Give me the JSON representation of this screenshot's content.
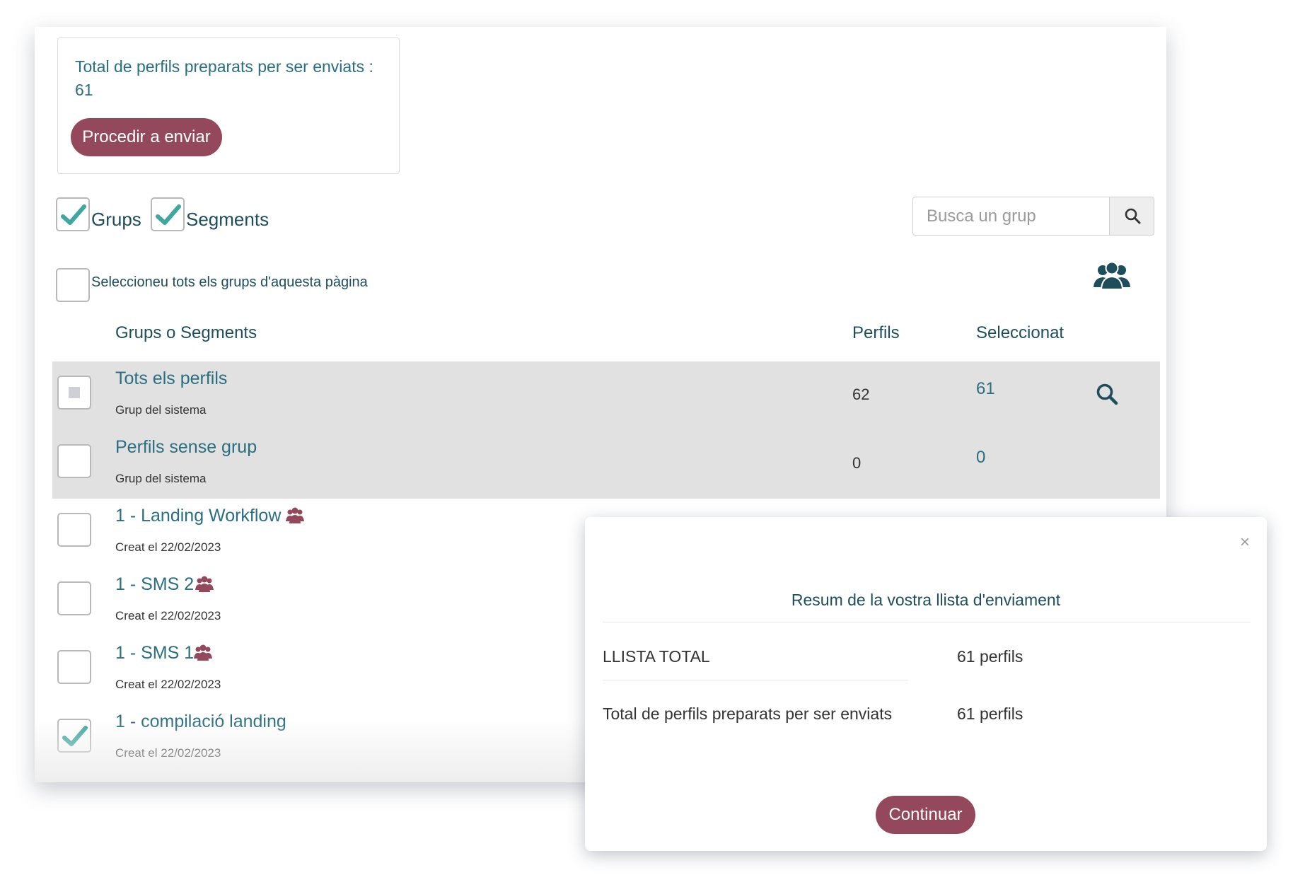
{
  "summary": {
    "text": "Total de perfils preparats per ser enviats : 61",
    "send_button": "Procedir a enviar"
  },
  "filters": {
    "groups_label": "Grups",
    "groups_checked": true,
    "segments_label": "Segments",
    "segments_checked": true
  },
  "search": {
    "placeholder": "Busca un grup"
  },
  "select_all_label": "Seleccioneu tots els grups d'aquesta pàgina",
  "table": {
    "columns": [
      "Grups o Segments",
      "Perfils",
      "Seleccionat"
    ],
    "rows": [
      {
        "title": "Tots els perfils",
        "subtitle": "Grup del sistema",
        "perfils": "62",
        "selected": "61",
        "checkbox": "indeterminate",
        "system": true
      },
      {
        "title": "Perfils sense grup",
        "subtitle": "Grup del sistema",
        "perfils": "0",
        "selected": "0",
        "checkbox": "unchecked",
        "system": true
      },
      {
        "title": "1 - Landing  Workflow",
        "subtitle": "Creat el 22/02/2023",
        "checkbox": "unchecked",
        "icon": "users-icon"
      },
      {
        "title": "1 - SMS 2",
        "subtitle": "Creat el 22/02/2023",
        "checkbox": "unchecked",
        "icon": "users-icon"
      },
      {
        "title": "1 - SMS 1",
        "subtitle": "Creat el 22/02/2023",
        "checkbox": "unchecked",
        "icon": "users-icon"
      },
      {
        "title": "1 - compilació  landing",
        "subtitle": "Creat el 22/02/2023",
        "checkbox": "checked"
      }
    ]
  },
  "modal": {
    "close": "×",
    "title": "Resum de la vostra llista d'enviament",
    "rows": [
      {
        "label": "LLISTA TOTAL",
        "value": "61 perfils"
      },
      {
        "label": "Total de perfils preparats per ser enviats",
        "value": "61 perfils"
      }
    ],
    "continue_button": "Continuar"
  },
  "colors": {
    "primary_button": "#93495b",
    "link_text": "#2a6f80",
    "heading_text": "#1e4e5c",
    "check_teal": "#3fa7a0",
    "group_icon": "#93495b",
    "system_row_bg": "#e1e1e1"
  }
}
